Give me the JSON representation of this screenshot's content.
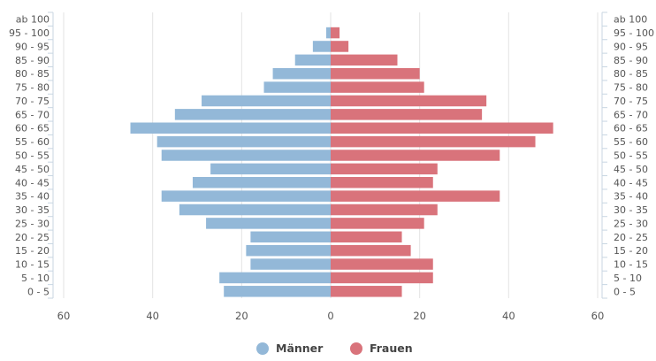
{
  "chart_data": {
    "type": "bar",
    "orientation": "horizontal-diverging",
    "categories": [
      "ab 100",
      "95 - 100",
      "90 - 95",
      "85 - 90",
      "80 - 85",
      "75 - 80",
      "70 - 75",
      "65 - 70",
      "60 - 65",
      "55 - 60",
      "50 - 55",
      "45 - 50",
      "40 - 45",
      "35 - 40",
      "30 - 35",
      "25 - 30",
      "20 - 25",
      "15 - 20",
      "10 - 15",
      "5 - 10",
      "0 - 5"
    ],
    "series": [
      {
        "name": "Männer",
        "color": "#93b8d8",
        "values": [
          0,
          1,
          4,
          8,
          13,
          15,
          29,
          35,
          45,
          39,
          38,
          27,
          31,
          38,
          34,
          28,
          18,
          19,
          18,
          25,
          24
        ]
      },
      {
        "name": "Frauen",
        "color": "#d9737b",
        "values": [
          0,
          2,
          4,
          15,
          20,
          21,
          35,
          34,
          50,
          46,
          38,
          24,
          23,
          38,
          24,
          21,
          16,
          18,
          23,
          23,
          16
        ]
      }
    ],
    "xlim": [
      -60,
      60
    ],
    "x_ticks": [
      {
        "value": -60,
        "label": "60"
      },
      {
        "value": -40,
        "label": "40"
      },
      {
        "value": -20,
        "label": "20"
      },
      {
        "value": 0,
        "label": "0"
      },
      {
        "value": 20,
        "label": "20"
      },
      {
        "value": 40,
        "label": "40"
      },
      {
        "value": 60,
        "label": "60"
      }
    ],
    "grid": true,
    "legend_position": "bottom-center",
    "category_labels_on": "both sides"
  }
}
